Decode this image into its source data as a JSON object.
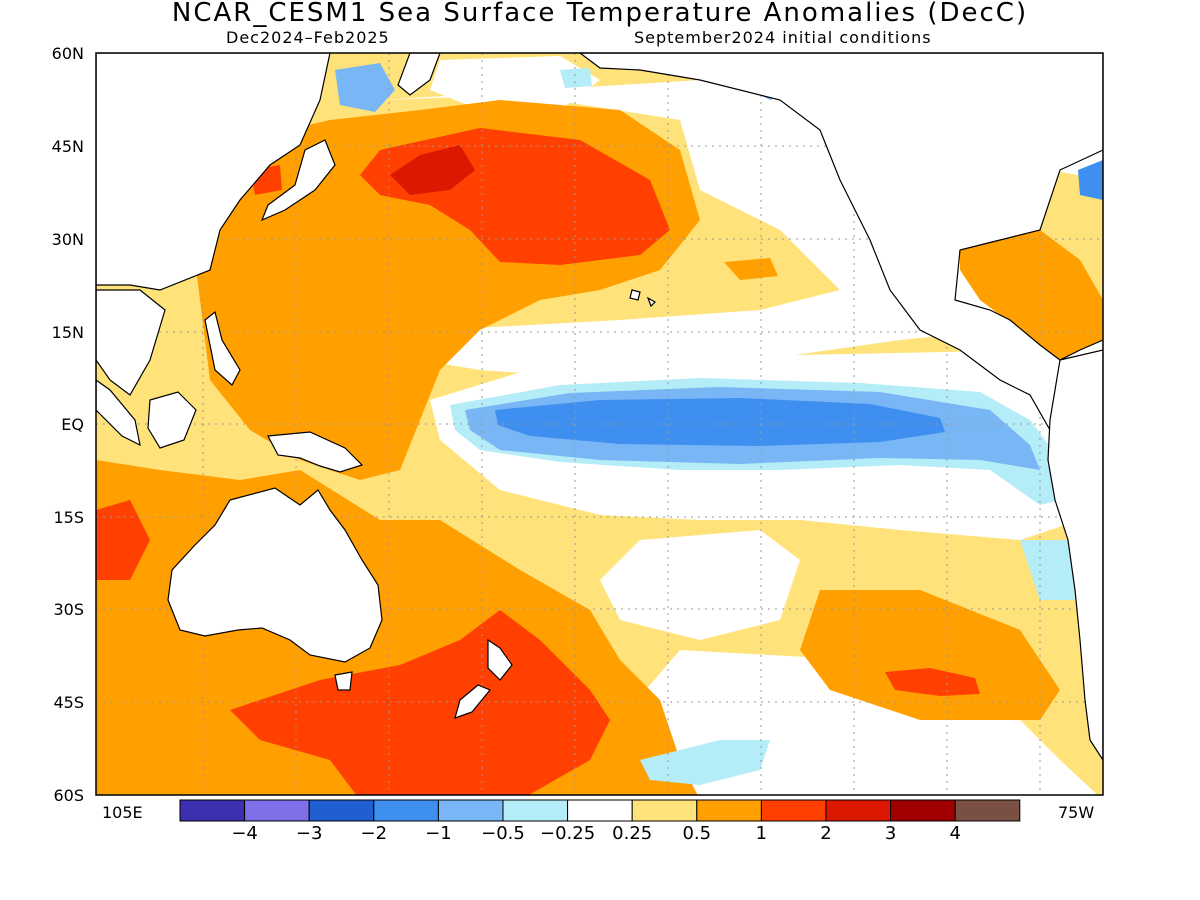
{
  "title": "NCAR_CESM1 Sea Surface Temperature Anomalies (DecC)",
  "subtitle_left": "Dec2024–Feb2025",
  "subtitle_right": "September2024 initial conditions",
  "lat_labels": [
    "60N",
    "45N",
    "30N",
    "15N",
    "EQ",
    "15S",
    "30S",
    "45S",
    "60S"
  ],
  "lon_labels": {
    "left": "105E",
    "right": "75W"
  },
  "colorbar": {
    "colors": [
      "#3c2fb0",
      "#7f6fe8",
      "#1f5fd0",
      "#3f8ff0",
      "#79b6f5",
      "#b4ecf7",
      "#ffffff",
      "#ffe27a",
      "#ff9f00",
      "#ff4000",
      "#dd1800",
      "#a00000",
      "#7a4f44"
    ],
    "labels": [
      "-4",
      "-3",
      "-2",
      "-1",
      "-0.5",
      "-0.25",
      "0.25",
      "0.5",
      "1",
      "2",
      "3",
      "4"
    ]
  }
}
